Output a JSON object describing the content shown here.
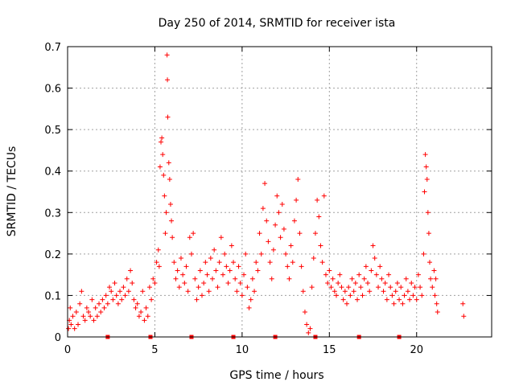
{
  "chart_data": {
    "type": "scatter",
    "title": "Day 250 of 2014, SRMTID for receiver ista",
    "xlabel": "GPS time / hours",
    "ylabel": "SRMTID / TECUs",
    "xlim": [
      0,
      24.3
    ],
    "ylim": [
      0,
      0.7
    ],
    "xticks": [
      0,
      5,
      10,
      15,
      20
    ],
    "xtick_labels": [
      "0",
      "5",
      "10",
      "15",
      "20"
    ],
    "yticks": [
      0,
      0.1,
      0.2,
      0.3,
      0.4,
      0.5,
      0.6,
      0.7
    ],
    "ytick_labels": [
      "0",
      "0.1",
      "0.2",
      "0.3",
      "0.4",
      "0.5",
      "0.6",
      "0.7"
    ],
    "grid": true,
    "marker": "+",
    "color": "#ff0000",
    "series": [
      {
        "name": "SRMTID",
        "points": [
          [
            0.05,
            0.02
          ],
          [
            0.1,
            0.04
          ],
          [
            0.15,
            0.07
          ],
          [
            0.2,
            0.03
          ],
          [
            0.3,
            0.05
          ],
          [
            0.4,
            0.02
          ],
          [
            0.5,
            0.06
          ],
          [
            0.6,
            0.03
          ],
          [
            0.7,
            0.08
          ],
          [
            0.8,
            0.11
          ],
          [
            0.9,
            0.05
          ],
          [
            1.0,
            0.04
          ],
          [
            1.1,
            0.07
          ],
          [
            1.2,
            0.06
          ],
          [
            1.3,
            0.05
          ],
          [
            1.4,
            0.09
          ],
          [
            1.5,
            0.04
          ],
          [
            1.6,
            0.07
          ],
          [
            1.7,
            0.05
          ],
          [
            1.8,
            0.08
          ],
          [
            1.9,
            0.06
          ],
          [
            2.0,
            0.09
          ],
          [
            2.1,
            0.07
          ],
          [
            2.2,
            0.1
          ],
          [
            2.3,
            0.08
          ],
          [
            2.4,
            0.12
          ],
          [
            2.5,
            0.11
          ],
          [
            2.6,
            0.09
          ],
          [
            2.7,
            0.13
          ],
          [
            2.8,
            0.1
          ],
          [
            2.9,
            0.08
          ],
          [
            3.0,
            0.11
          ],
          [
            3.1,
            0.09
          ],
          [
            3.2,
            0.12
          ],
          [
            3.3,
            0.1
          ],
          [
            3.4,
            0.14
          ],
          [
            3.5,
            0.11
          ],
          [
            3.6,
            0.16
          ],
          [
            3.7,
            0.13
          ],
          [
            3.8,
            0.09
          ],
          [
            3.9,
            0.07
          ],
          [
            4.0,
            0.08
          ],
          [
            4.1,
            0.05
          ],
          [
            4.2,
            0.06
          ],
          [
            4.3,
            0.11
          ],
          [
            4.4,
            0.04
          ],
          [
            4.5,
            0.07
          ],
          [
            4.6,
            0.05
          ],
          [
            4.7,
            0.12
          ],
          [
            4.8,
            0.09
          ],
          [
            4.9,
            0.14
          ],
          [
            5.0,
            0.13
          ],
          [
            5.1,
            0.18
          ],
          [
            5.2,
            0.21
          ],
          [
            5.25,
            0.17
          ],
          [
            5.3,
            0.41
          ],
          [
            5.35,
            0.47
          ],
          [
            5.4,
            0.48
          ],
          [
            5.45,
            0.44
          ],
          [
            5.5,
            0.39
          ],
          [
            5.55,
            0.34
          ],
          [
            5.6,
            0.25
          ],
          [
            5.65,
            0.3
          ],
          [
            5.7,
            0.68
          ],
          [
            5.72,
            0.62
          ],
          [
            5.74,
            0.53
          ],
          [
            5.8,
            0.42
          ],
          [
            5.85,
            0.38
          ],
          [
            5.9,
            0.32
          ],
          [
            5.95,
            0.28
          ],
          [
            6.0,
            0.24
          ],
          [
            6.1,
            0.18
          ],
          [
            6.2,
            0.14
          ],
          [
            6.3,
            0.16
          ],
          [
            6.4,
            0.12
          ],
          [
            6.5,
            0.19
          ],
          [
            6.6,
            0.15
          ],
          [
            6.7,
            0.13
          ],
          [
            6.8,
            0.17
          ],
          [
            6.9,
            0.11
          ],
          [
            7.0,
            0.24
          ],
          [
            7.1,
            0.2
          ],
          [
            7.2,
            0.25
          ],
          [
            7.3,
            0.14
          ],
          [
            7.4,
            0.09
          ],
          [
            7.5,
            0.12
          ],
          [
            7.6,
            0.16
          ],
          [
            7.7,
            0.1
          ],
          [
            7.8,
            0.13
          ],
          [
            7.9,
            0.18
          ],
          [
            8.0,
            0.15
          ],
          [
            8.1,
            0.11
          ],
          [
            8.2,
            0.19
          ],
          [
            8.3,
            0.14
          ],
          [
            8.4,
            0.21
          ],
          [
            8.5,
            0.16
          ],
          [
            8.6,
            0.12
          ],
          [
            8.7,
            0.18
          ],
          [
            8.8,
            0.24
          ],
          [
            8.9,
            0.15
          ],
          [
            9.0,
            0.2
          ],
          [
            9.1,
            0.17
          ],
          [
            9.2,
            0.13
          ],
          [
            9.3,
            0.16
          ],
          [
            9.4,
            0.22
          ],
          [
            9.5,
            0.18
          ],
          [
            9.6,
            0.14
          ],
          [
            9.7,
            0.11
          ],
          [
            9.8,
            0.17
          ],
          [
            9.9,
            0.13
          ],
          [
            10.0,
            0.1
          ],
          [
            10.1,
            0.15
          ],
          [
            10.2,
            0.2
          ],
          [
            10.3,
            0.12
          ],
          [
            10.4,
            0.07
          ],
          [
            10.5,
            0.09
          ],
          [
            10.6,
            0.14
          ],
          [
            10.7,
            0.11
          ],
          [
            10.8,
            0.18
          ],
          [
            10.9,
            0.16
          ],
          [
            11.0,
            0.25
          ],
          [
            11.1,
            0.2
          ],
          [
            11.2,
            0.31
          ],
          [
            11.3,
            0.37
          ],
          [
            11.4,
            0.28
          ],
          [
            11.5,
            0.23
          ],
          [
            11.6,
            0.18
          ],
          [
            11.7,
            0.14
          ],
          [
            11.8,
            0.21
          ],
          [
            11.9,
            0.27
          ],
          [
            12.0,
            0.34
          ],
          [
            12.1,
            0.3
          ],
          [
            12.2,
            0.24
          ],
          [
            12.3,
            0.32
          ],
          [
            12.4,
            0.26
          ],
          [
            12.5,
            0.2
          ],
          [
            12.6,
            0.17
          ],
          [
            12.7,
            0.14
          ],
          [
            12.8,
            0.22
          ],
          [
            12.9,
            0.18
          ],
          [
            13.0,
            0.28
          ],
          [
            13.1,
            0.33
          ],
          [
            13.2,
            0.38
          ],
          [
            13.3,
            0.25
          ],
          [
            13.4,
            0.17
          ],
          [
            13.5,
            0.11
          ],
          [
            13.6,
            0.06
          ],
          [
            13.7,
            0.03
          ],
          [
            13.8,
            0.01
          ],
          [
            13.9,
            0.02
          ],
          [
            14.0,
            0.12
          ],
          [
            14.1,
            0.19
          ],
          [
            14.2,
            0.25
          ],
          [
            14.3,
            0.33
          ],
          [
            14.4,
            0.29
          ],
          [
            14.5,
            0.22
          ],
          [
            14.6,
            0.18
          ],
          [
            14.7,
            0.34
          ],
          [
            14.8,
            0.15
          ],
          [
            14.9,
            0.13
          ],
          [
            15.0,
            0.16
          ],
          [
            15.1,
            0.12
          ],
          [
            15.2,
            0.14
          ],
          [
            15.3,
            0.11
          ],
          [
            15.4,
            0.1
          ],
          [
            15.5,
            0.13
          ],
          [
            15.6,
            0.15
          ],
          [
            15.7,
            0.12
          ],
          [
            15.8,
            0.09
          ],
          [
            15.9,
            0.11
          ],
          [
            16.0,
            0.08
          ],
          [
            16.1,
            0.12
          ],
          [
            16.2,
            0.1
          ],
          [
            16.3,
            0.14
          ],
          [
            16.4,
            0.11
          ],
          [
            16.5,
            0.13
          ],
          [
            16.6,
            0.09
          ],
          [
            16.7,
            0.15
          ],
          [
            16.8,
            0.12
          ],
          [
            16.9,
            0.1
          ],
          [
            17.0,
            0.14
          ],
          [
            17.1,
            0.17
          ],
          [
            17.2,
            0.13
          ],
          [
            17.3,
            0.11
          ],
          [
            17.4,
            0.16
          ],
          [
            17.5,
            0.22
          ],
          [
            17.6,
            0.19
          ],
          [
            17.7,
            0.15
          ],
          [
            17.8,
            0.12
          ],
          [
            17.9,
            0.17
          ],
          [
            18.0,
            0.14
          ],
          [
            18.1,
            0.11
          ],
          [
            18.2,
            0.13
          ],
          [
            18.3,
            0.09
          ],
          [
            18.4,
            0.15
          ],
          [
            18.5,
            0.12
          ],
          [
            18.6,
            0.1
          ],
          [
            18.7,
            0.08
          ],
          [
            18.8,
            0.11
          ],
          [
            18.9,
            0.13
          ],
          [
            19.0,
            0.09
          ],
          [
            19.1,
            0.12
          ],
          [
            19.2,
            0.08
          ],
          [
            19.3,
            0.1
          ],
          [
            19.4,
            0.14
          ],
          [
            19.5,
            0.11
          ],
          [
            19.6,
            0.09
          ],
          [
            19.7,
            0.13
          ],
          [
            19.8,
            0.1
          ],
          [
            19.9,
            0.12
          ],
          [
            20.0,
            0.09
          ],
          [
            20.1,
            0.15
          ],
          [
            20.2,
            0.12
          ],
          [
            20.3,
            0.1
          ],
          [
            20.4,
            0.2
          ],
          [
            20.45,
            0.35
          ],
          [
            20.5,
            0.44
          ],
          [
            20.55,
            0.41
          ],
          [
            20.6,
            0.38
          ],
          [
            20.65,
            0.3
          ],
          [
            20.7,
            0.25
          ],
          [
            20.75,
            0.18
          ],
          [
            20.8,
            0.14
          ],
          [
            20.9,
            0.12
          ],
          [
            21.0,
            0.16
          ],
          [
            21.05,
            0.1
          ],
          [
            21.1,
            0.14
          ],
          [
            21.15,
            0.08
          ],
          [
            21.2,
            0.06
          ],
          [
            22.65,
            0.08
          ],
          [
            22.7,
            0.05
          ]
        ]
      }
    ],
    "gaps_at_zero": [
      2.3,
      4.75,
      7.1,
      9.5,
      11.9,
      14.2,
      16.7,
      19.0
    ]
  }
}
